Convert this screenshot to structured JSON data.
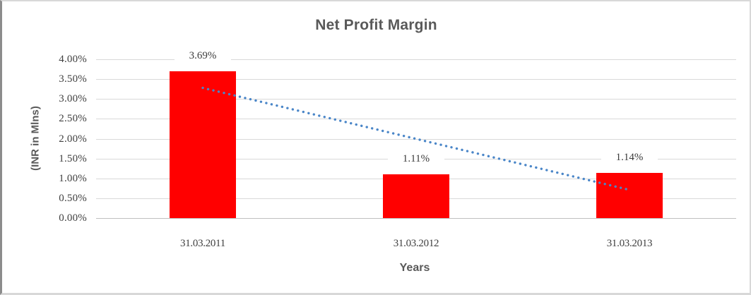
{
  "chart_data": {
    "type": "bar",
    "title": "Net Profit Margin",
    "categories": [
      "31.03.2011",
      "31.03.2012",
      "31.03.2013"
    ],
    "values": [
      3.69,
      1.11,
      1.14
    ],
    "data_labels": [
      "3.69%",
      "1.11%",
      "1.14%"
    ],
    "xlabel": "Years",
    "ylabel": "(INR in Mlns)",
    "ylim": [
      0,
      4
    ],
    "ytick_step": 0.5,
    "ytick_labels": [
      "0.00%",
      "0.50%",
      "1.00%",
      "1.50%",
      "2.00%",
      "2.50%",
      "3.00%",
      "3.50%",
      "4.00%"
    ],
    "grid": true,
    "legend": false,
    "bar_color": "#FF0000",
    "trendline": {
      "type": "linear",
      "style": "dotted",
      "color": "#4A86C8",
      "start_value": 3.28,
      "end_value": 0.71
    }
  },
  "colors": {
    "title": "#595959",
    "axis_title": "#595959",
    "tick_label": "#404040",
    "gridline": "#D9D9D9",
    "axis_line": "#C0C0C0"
  }
}
